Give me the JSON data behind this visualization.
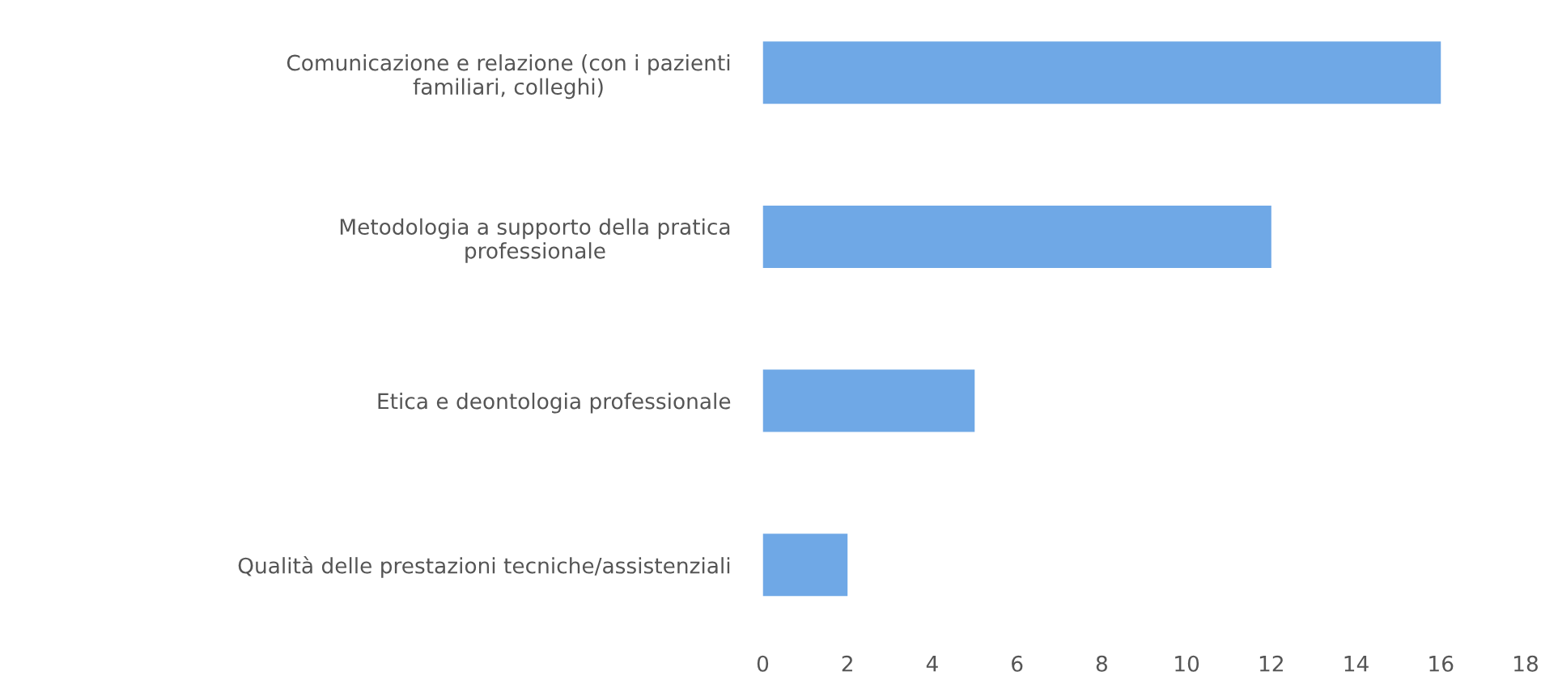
{
  "chart_data": {
    "type": "bar",
    "orientation": "horizontal",
    "categories": [
      "Comunicazione e relazione (con i pazienti\nfamiliari, colleghi)",
      "Metodologia a supporto della pratica\nprofessionale",
      "Etica e deontologia professionale",
      "Qualità delle prestazioni tecniche/assistenziali"
    ],
    "values": [
      16,
      12,
      5,
      2
    ],
    "color": "#6fa8e6",
    "xlim": [
      0,
      18
    ],
    "xticks": [
      0,
      2,
      4,
      6,
      8,
      10,
      12,
      14,
      16,
      18
    ],
    "grid": false,
    "legend": false
  }
}
